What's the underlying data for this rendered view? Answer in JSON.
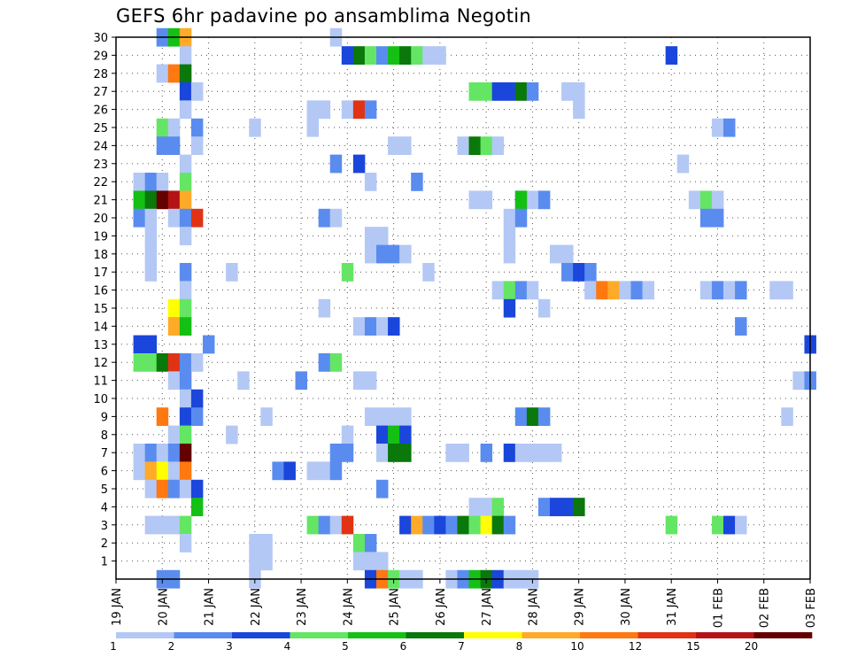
{
  "chart_data": {
    "type": "heatmap",
    "title": "GEFS 6hr padavine po ansamblima Negotin",
    "xlabel": "",
    "ylabel": "",
    "x_tick_labels": [
      "19 JAN",
      "20 JAN",
      "21 JAN",
      "22 JAN",
      "23 JAN",
      "24 JAN",
      "25 JAN",
      "26 JAN",
      "27 JAN",
      "28 JAN",
      "29 JAN",
      "30 JAN",
      "31 JAN",
      "01 FEB",
      "02 FEB",
      "03 FEB"
    ],
    "y_tick_labels": [
      "1",
      "2",
      "3",
      "4",
      "5",
      "6",
      "7",
      "8",
      "9",
      "10",
      "11",
      "12",
      "13",
      "14",
      "15",
      "16",
      "17",
      "18",
      "19",
      "20",
      "21",
      "22",
      "23",
      "24",
      "25",
      "26",
      "27",
      "28",
      "29",
      "30"
    ],
    "x_units": "6-hour steps since 19 JAN 00Z",
    "xlim": [
      0,
      60
    ],
    "ylim": [
      0,
      30
    ],
    "grid": true,
    "colorbar": {
      "position": "bottom",
      "labels": [
        "1",
        "2",
        "3",
        "4",
        "5",
        "6",
        "7",
        "8",
        "10",
        "12",
        "15",
        "20"
      ],
      "colors": [
        "#b4c8f5",
        "#5a8cf0",
        "#1a46dc",
        "#64e664",
        "#14c014",
        "#0a780a",
        "#ffff00",
        "#ffaa28",
        "#ff7810",
        "#e13214",
        "#b41414",
        "#640000"
      ]
    },
    "cells": [
      [
        4,
        30,
        1
      ],
      [
        5,
        30,
        4
      ],
      [
        6,
        30,
        7
      ],
      [
        19,
        30,
        0
      ],
      [
        6,
        29,
        0
      ],
      [
        20,
        29,
        2
      ],
      [
        21,
        29,
        5
      ],
      [
        22,
        29,
        3
      ],
      [
        23,
        29,
        1
      ],
      [
        24,
        29,
        4
      ],
      [
        25,
        29,
        5
      ],
      [
        26,
        29,
        3
      ],
      [
        27,
        29,
        0
      ],
      [
        28,
        29,
        0
      ],
      [
        48,
        29,
        2
      ],
      [
        4,
        28,
        0
      ],
      [
        5,
        28,
        8
      ],
      [
        6,
        28,
        5
      ],
      [
        6,
        27,
        2
      ],
      [
        7,
        27,
        0
      ],
      [
        31,
        27,
        3
      ],
      [
        32,
        27,
        3
      ],
      [
        33,
        27,
        2
      ],
      [
        34,
        27,
        2
      ],
      [
        35,
        27,
        5
      ],
      [
        36,
        27,
        1
      ],
      [
        39,
        27,
        0
      ],
      [
        40,
        27,
        0
      ],
      [
        6,
        26,
        0
      ],
      [
        17,
        26,
        0
      ],
      [
        18,
        26,
        0
      ],
      [
        20,
        26,
        0
      ],
      [
        21,
        26,
        9
      ],
      [
        22,
        26,
        1
      ],
      [
        40,
        26,
        0
      ],
      [
        4,
        25,
        3
      ],
      [
        5,
        25,
        0
      ],
      [
        7,
        25,
        1
      ],
      [
        12,
        25,
        0
      ],
      [
        17,
        25,
        0
      ],
      [
        52,
        25,
        0
      ],
      [
        53,
        25,
        1
      ],
      [
        4,
        24,
        1
      ],
      [
        5,
        24,
        1
      ],
      [
        7,
        24,
        0
      ],
      [
        24,
        24,
        0
      ],
      [
        25,
        24,
        0
      ],
      [
        30,
        24,
        0
      ],
      [
        31,
        24,
        5
      ],
      [
        32,
        24,
        3
      ],
      [
        33,
        24,
        0
      ],
      [
        6,
        23,
        0
      ],
      [
        19,
        23,
        1
      ],
      [
        21,
        23,
        2
      ],
      [
        49,
        23,
        0
      ],
      [
        2,
        22,
        0
      ],
      [
        3,
        22,
        1
      ],
      [
        4,
        22,
        0
      ],
      [
        6,
        22,
        3
      ],
      [
        22,
        22,
        0
      ],
      [
        26,
        22,
        1
      ],
      [
        2,
        21,
        4
      ],
      [
        3,
        21,
        5
      ],
      [
        4,
        21,
        11
      ],
      [
        5,
        21,
        10
      ],
      [
        6,
        21,
        7
      ],
      [
        31,
        21,
        0
      ],
      [
        32,
        21,
        0
      ],
      [
        35,
        21,
        1
      ],
      [
        36,
        21,
        0
      ],
      [
        35,
        21,
        4
      ],
      [
        37,
        21,
        1
      ],
      [
        50,
        21,
        0
      ],
      [
        51,
        21,
        3
      ],
      [
        52,
        21,
        0
      ],
      [
        2,
        20,
        1
      ],
      [
        3,
        20,
        0
      ],
      [
        5,
        20,
        0
      ],
      [
        6,
        20,
        1
      ],
      [
        7,
        20,
        9
      ],
      [
        18,
        20,
        1
      ],
      [
        19,
        20,
        0
      ],
      [
        34,
        20,
        0
      ],
      [
        35,
        20,
        1
      ],
      [
        51,
        20,
        1
      ],
      [
        52,
        20,
        1
      ],
      [
        3,
        19,
        0
      ],
      [
        6,
        19,
        0
      ],
      [
        22,
        19,
        0
      ],
      [
        23,
        19,
        0
      ],
      [
        34,
        19,
        0
      ],
      [
        3,
        18,
        0
      ],
      [
        22,
        18,
        0
      ],
      [
        23,
        18,
        1
      ],
      [
        24,
        18,
        1
      ],
      [
        25,
        18,
        0
      ],
      [
        34,
        18,
        0
      ],
      [
        38,
        18,
        0
      ],
      [
        39,
        18,
        0
      ],
      [
        3,
        17,
        0
      ],
      [
        6,
        17,
        1
      ],
      [
        10,
        17,
        0
      ],
      [
        20,
        17,
        3
      ],
      [
        27,
        17,
        0
      ],
      [
        39,
        17,
        1
      ],
      [
        40,
        17,
        2
      ],
      [
        41,
        17,
        1
      ],
      [
        6,
        16,
        0
      ],
      [
        33,
        16,
        0
      ],
      [
        34,
        16,
        3
      ],
      [
        35,
        16,
        1
      ],
      [
        36,
        16,
        0
      ],
      [
        41,
        16,
        0
      ],
      [
        42,
        16,
        8
      ],
      [
        43,
        16,
        7
      ],
      [
        44,
        16,
        0
      ],
      [
        45,
        16,
        1
      ],
      [
        46,
        16,
        0
      ],
      [
        51,
        16,
        0
      ],
      [
        52,
        16,
        1
      ],
      [
        53,
        16,
        0
      ],
      [
        54,
        16,
        1
      ],
      [
        57,
        16,
        0
      ],
      [
        58,
        16,
        0
      ],
      [
        5,
        15,
        6
      ],
      [
        6,
        15,
        3
      ],
      [
        18,
        15,
        0
      ],
      [
        37,
        15,
        0
      ],
      [
        34,
        15,
        2
      ],
      [
        5,
        14,
        7
      ],
      [
        6,
        14,
        4
      ],
      [
        21,
        14,
        0
      ],
      [
        22,
        14,
        1
      ],
      [
        23,
        14,
        0
      ],
      [
        24,
        14,
        2
      ],
      [
        54,
        14,
        1
      ],
      [
        2,
        13,
        2
      ],
      [
        3,
        13,
        2
      ],
      [
        8,
        13,
        1
      ],
      [
        60,
        13,
        2
      ],
      [
        2,
        12,
        3
      ],
      [
        3,
        12,
        3
      ],
      [
        4,
        12,
        5
      ],
      [
        5,
        12,
        9
      ],
      [
        6,
        12,
        1
      ],
      [
        18,
        12,
        1
      ],
      [
        19,
        12,
        3
      ],
      [
        7,
        12,
        0
      ],
      [
        5,
        11,
        0
      ],
      [
        6,
        11,
        1
      ],
      [
        11,
        11,
        0
      ],
      [
        16,
        11,
        1
      ],
      [
        21,
        11,
        0
      ],
      [
        22,
        11,
        0
      ],
      [
        59,
        11,
        0
      ],
      [
        60,
        11,
        1
      ],
      [
        6,
        10,
        0
      ],
      [
        7,
        10,
        2
      ],
      [
        4,
        9,
        8
      ],
      [
        6,
        9,
        2
      ],
      [
        7,
        9,
        1
      ],
      [
        13,
        9,
        0
      ],
      [
        22,
        9,
        0
      ],
      [
        23,
        9,
        0
      ],
      [
        24,
        9,
        0
      ],
      [
        25,
        9,
        0
      ],
      [
        35,
        9,
        1
      ],
      [
        36,
        9,
        5
      ],
      [
        37,
        9,
        1
      ],
      [
        58,
        9,
        0
      ],
      [
        5,
        8,
        0
      ],
      [
        6,
        8,
        3
      ],
      [
        10,
        8,
        0
      ],
      [
        20,
        8,
        0
      ],
      [
        23,
        8,
        2
      ],
      [
        24,
        8,
        4
      ],
      [
        25,
        8,
        2
      ],
      [
        2,
        7,
        0
      ],
      [
        3,
        7,
        1
      ],
      [
        4,
        7,
        0
      ],
      [
        5,
        7,
        1
      ],
      [
        6,
        7,
        11
      ],
      [
        19,
        7,
        1
      ],
      [
        20,
        7,
        1
      ],
      [
        23,
        7,
        0
      ],
      [
        24,
        7,
        5
      ],
      [
        25,
        7,
        5
      ],
      [
        29,
        7,
        0
      ],
      [
        30,
        7,
        0
      ],
      [
        32,
        7,
        1
      ],
      [
        34,
        7,
        2
      ],
      [
        35,
        7,
        0
      ],
      [
        36,
        7,
        0
      ],
      [
        37,
        7,
        0
      ],
      [
        38,
        7,
        0
      ],
      [
        2,
        6,
        0
      ],
      [
        3,
        6,
        7
      ],
      [
        4,
        6,
        6
      ],
      [
        5,
        6,
        0
      ],
      [
        6,
        6,
        8
      ],
      [
        14,
        6,
        1
      ],
      [
        15,
        6,
        2
      ],
      [
        17,
        6,
        0
      ],
      [
        18,
        6,
        0
      ],
      [
        19,
        6,
        1
      ],
      [
        3,
        5,
        0
      ],
      [
        4,
        5,
        8
      ],
      [
        5,
        5,
        1
      ],
      [
        6,
        5,
        0
      ],
      [
        7,
        5,
        2
      ],
      [
        23,
        5,
        1
      ],
      [
        7,
        4,
        4
      ],
      [
        31,
        4,
        0
      ],
      [
        32,
        4,
        0
      ],
      [
        33,
        4,
        3
      ],
      [
        37,
        4,
        1
      ],
      [
        38,
        4,
        2
      ],
      [
        39,
        4,
        2
      ],
      [
        40,
        4,
        5
      ],
      [
        3,
        3,
        0
      ],
      [
        4,
        3,
        0
      ],
      [
        5,
        3,
        0
      ],
      [
        6,
        3,
        3
      ],
      [
        17,
        3,
        3
      ],
      [
        18,
        3,
        1
      ],
      [
        19,
        3,
        0
      ],
      [
        20,
        3,
        9
      ],
      [
        25,
        3,
        2
      ],
      [
        26,
        3,
        7
      ],
      [
        27,
        3,
        1
      ],
      [
        28,
        3,
        2
      ],
      [
        29,
        3,
        1
      ],
      [
        30,
        3,
        5
      ],
      [
        31,
        3,
        3
      ],
      [
        32,
        3,
        6
      ],
      [
        33,
        3,
        5
      ],
      [
        34,
        3,
        1
      ],
      [
        48,
        3,
        3
      ],
      [
        52,
        3,
        3
      ],
      [
        53,
        3,
        2
      ],
      [
        54,
        3,
        0
      ],
      [
        6,
        2,
        0
      ],
      [
        12,
        2,
        0
      ],
      [
        13,
        2,
        0
      ],
      [
        21,
        2,
        3
      ],
      [
        22,
        2,
        1
      ],
      [
        12,
        1,
        0
      ],
      [
        13,
        1,
        0
      ],
      [
        21,
        1,
        0
      ],
      [
        22,
        1,
        0
      ],
      [
        23,
        1,
        0
      ],
      [
        4,
        0,
        1
      ],
      [
        5,
        0,
        1
      ],
      [
        12,
        0,
        0
      ],
      [
        22,
        0,
        2
      ],
      [
        23,
        0,
        8
      ],
      [
        24,
        0,
        3
      ],
      [
        25,
        0,
        0
      ],
      [
        26,
        0,
        0
      ],
      [
        29,
        0,
        0
      ],
      [
        30,
        0,
        1
      ],
      [
        31,
        0,
        4
      ],
      [
        32,
        0,
        5
      ],
      [
        33,
        0,
        2
      ],
      [
        34,
        0,
        0
      ],
      [
        35,
        0,
        0
      ],
      [
        36,
        0,
        0
      ]
    ]
  }
}
